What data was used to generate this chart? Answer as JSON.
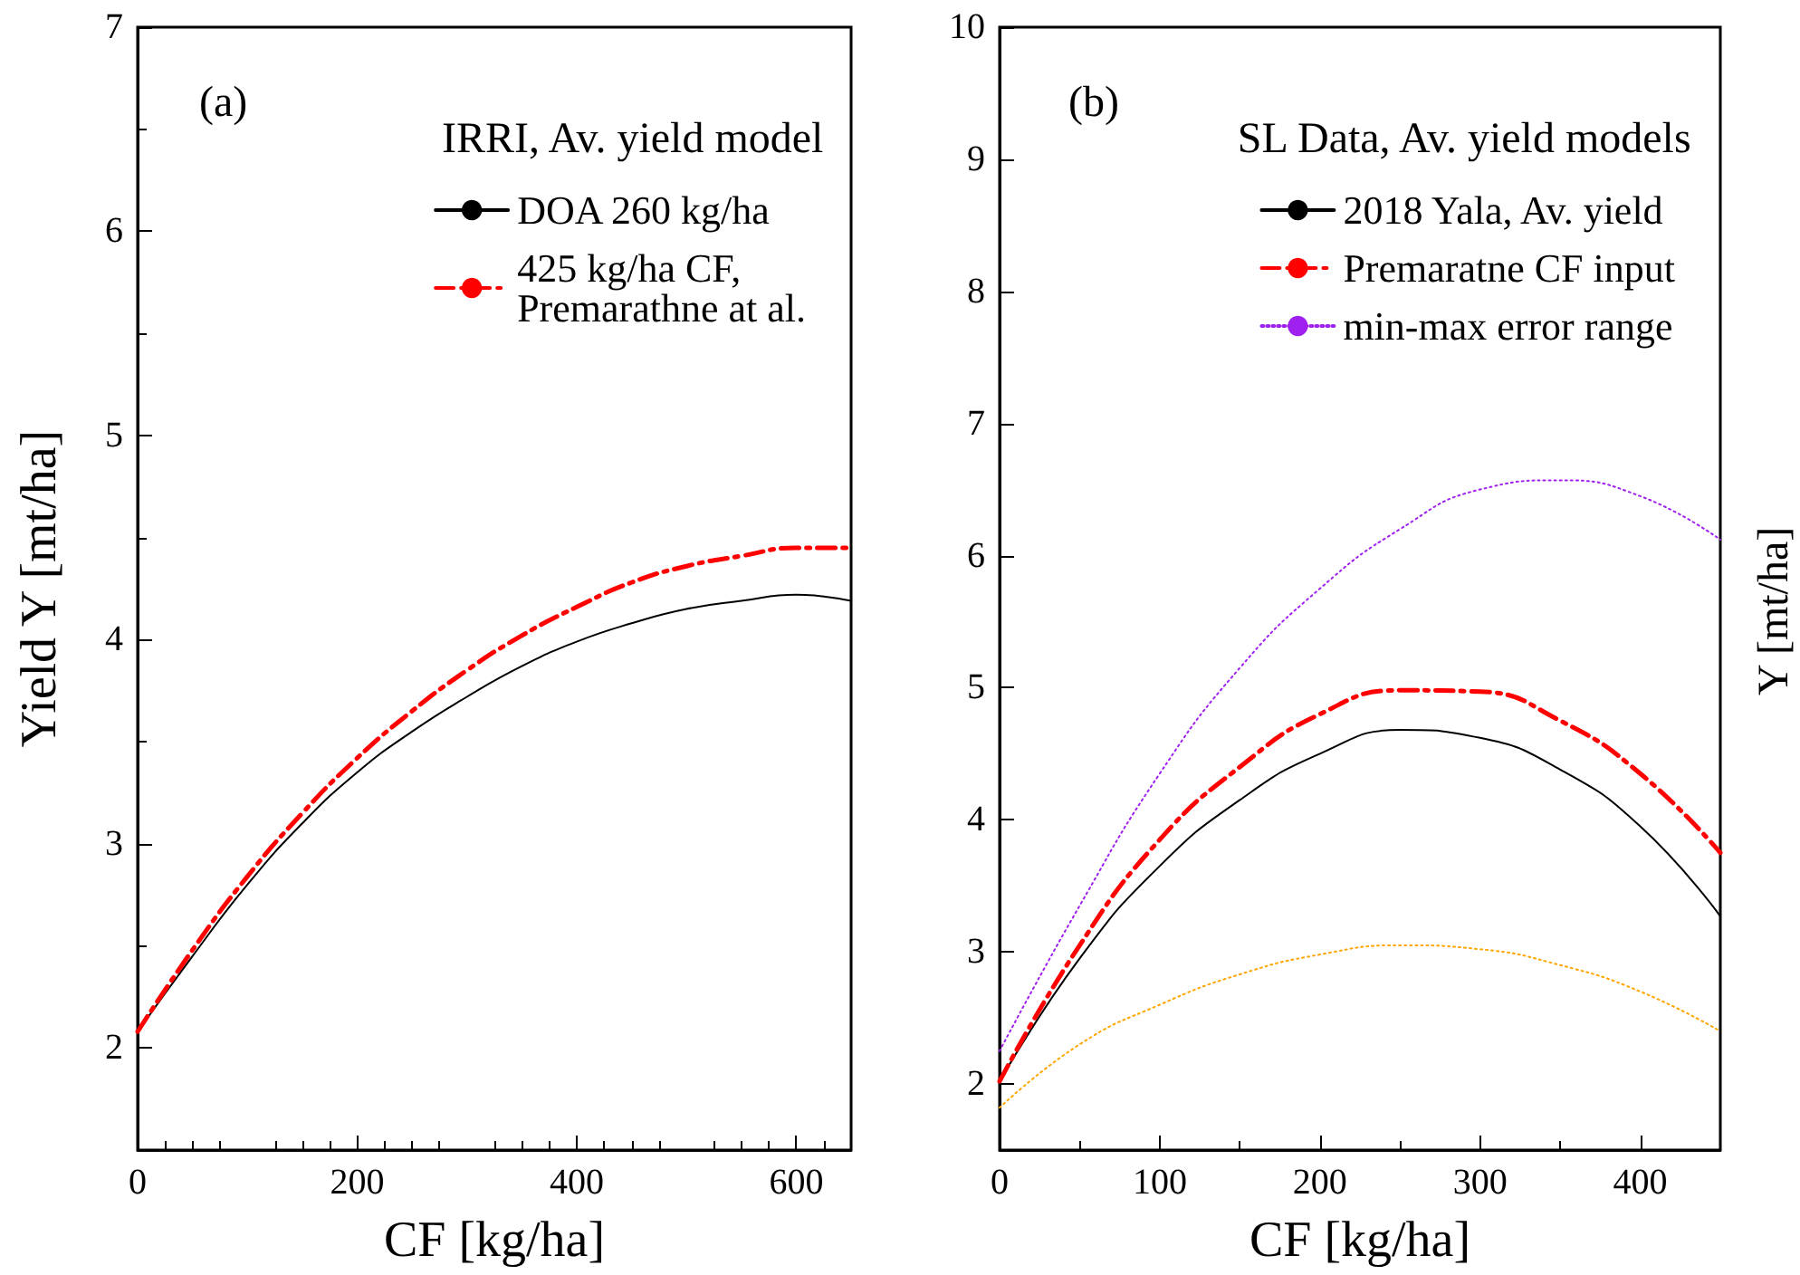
{
  "chart_data": [
    {
      "type": "line",
      "xlabel": "CF [kg/ha]",
      "ylabel": "Yield Y [mt/ha]",
      "legend_title": "IRRI, Av. yield model",
      "annotations": [
        "(a)"
      ],
      "x": [
        0,
        50,
        100,
        150,
        200,
        250,
        300,
        350,
        400,
        450,
        500,
        550,
        600,
        650
      ],
      "xlim": [
        0,
        650
      ],
      "xticks": [
        0,
        200,
        400,
        600
      ],
      "ylim": [
        1.5,
        7
      ],
      "yticks": [
        2,
        3,
        4,
        5,
        6,
        7
      ],
      "grid": false,
      "legend": "top right",
      "marker": "none",
      "series": [
        {
          "name": "DOA 260 kg/ha",
          "color": "#000000",
          "line_style": "solid",
          "values": [
            2.08,
            2.45,
            2.8,
            3.1,
            3.35,
            3.55,
            3.72,
            3.87,
            3.99,
            4.08,
            4.15,
            4.19,
            4.22,
            4.19
          ]
        },
        {
          "name": "425 kg/ha CF,\nPremarathne at al.",
          "color": "#ff0000",
          "line_style": "dashed",
          "values": [
            2.08,
            2.48,
            2.84,
            3.15,
            3.42,
            3.65,
            3.85,
            4.02,
            4.16,
            4.28,
            4.36,
            4.41,
            4.45,
            4.45
          ]
        }
      ]
    },
    {
      "type": "line",
      "xlabel": "CF [kg/ha]",
      "ylabel": "Y [mt/ha]",
      "legend_title": "SL Data, Av. yield models",
      "annotations": [
        "(b)"
      ],
      "x": [
        0,
        50,
        100,
        150,
        200,
        250,
        300,
        350,
        400,
        450
      ],
      "xlim": [
        0,
        450
      ],
      "xticks": [
        0,
        100,
        200,
        300,
        400
      ],
      "ylim": [
        1.5,
        10
      ],
      "yticks": [
        2,
        3,
        4,
        5,
        6,
        7,
        8,
        9,
        10
      ],
      "grid": false,
      "legend": "top right",
      "marker": "none",
      "series": [
        {
          "name": "2018 Yala, Av. yield",
          "color": "#000000",
          "line_style": "solid",
          "values": [
            2.02,
            2.95,
            3.65,
            4.15,
            4.5,
            4.68,
            4.62,
            4.38,
            3.95,
            3.27
          ]
        },
        {
          "name": "Premaratne CF input",
          "color": "#ff0000",
          "line_style": "dashed",
          "values": [
            2.02,
            3.05,
            3.85,
            4.4,
            4.8,
            4.98,
            4.97,
            4.75,
            4.35,
            3.75
          ]
        },
        {
          "name": "min-max error range",
          "color": "#a020f0",
          "line_style": "dotted",
          "values": [
            2.25,
            3.35,
            4.35,
            5.15,
            5.75,
            6.2,
            6.5,
            6.57,
            6.45,
            6.12
          ]
        },
        {
          "color": "#ffa500",
          "line_style": "dotted",
          "values": [
            1.82,
            2.3,
            2.6,
            2.83,
            2.98,
            3.05,
            3.02,
            2.9,
            2.7,
            2.4
          ]
        }
      ]
    }
  ]
}
